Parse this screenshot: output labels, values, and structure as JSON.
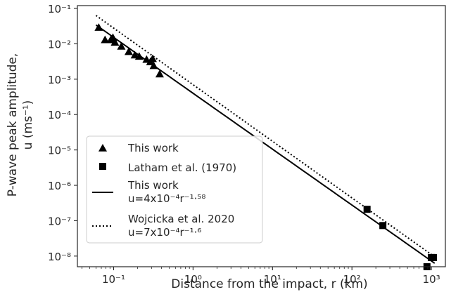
{
  "chart_data": {
    "type": "scatter",
    "title": "",
    "xlabel": "Distance from the impact, r (km)",
    "ylabel": [
      "P-wave peak amplitude,",
      "u (ms⁻¹)"
    ],
    "xscale": "log",
    "yscale": "log",
    "xlim": [
      0.035,
      1500
    ],
    "ylim": [
      5e-09,
      0.12
    ],
    "grid": false,
    "x_ticks": [
      {
        "value": 0.1,
        "label": "10⁻¹"
      },
      {
        "value": 1,
        "label": "10⁰"
      },
      {
        "value": 10,
        "label": "10¹"
      },
      {
        "value": 100,
        "label": "10²"
      },
      {
        "value": 1000,
        "label": "10³"
      }
    ],
    "y_ticks": [
      {
        "value": 1e-08,
        "label": "10⁻⁸"
      },
      {
        "value": 1e-07,
        "label": "10⁻⁷"
      },
      {
        "value": 1e-06,
        "label": "10⁻⁶"
      },
      {
        "value": 1e-05,
        "label": "10⁻⁵"
      },
      {
        "value": 0.0001,
        "label": "10⁻⁴"
      },
      {
        "value": 0.001,
        "label": "10⁻³"
      },
      {
        "value": 0.01,
        "label": "10⁻²"
      },
      {
        "value": 0.1,
        "label": "10⁻¹"
      }
    ],
    "legend_position": "bottom-left",
    "series": [
      {
        "name": "This work",
        "kind": "scatter",
        "marker": "triangle",
        "color": "#000000",
        "points": [
          [
            0.065,
            0.029
          ],
          [
            0.078,
            0.013
          ],
          [
            0.092,
            0.013
          ],
          [
            0.098,
            0.015
          ],
          [
            0.104,
            0.011
          ],
          [
            0.125,
            0.0085
          ],
          [
            0.155,
            0.006
          ],
          [
            0.185,
            0.0048
          ],
          [
            0.21,
            0.0044
          ],
          [
            0.26,
            0.0036
          ],
          [
            0.29,
            0.0031
          ],
          [
            0.31,
            0.0038
          ],
          [
            0.32,
            0.0024
          ],
          [
            0.38,
            0.0014
          ]
        ]
      },
      {
        "name": "Latham et al. (1970)",
        "kind": "scatter",
        "marker": "square",
        "color": "#000000",
        "points": [
          [
            155,
            2.1e-07
          ],
          [
            245,
            7.3e-08
          ],
          [
            880,
            5e-09
          ],
          [
            1000,
            9.1e-09
          ],
          [
            1060,
            9.1e-09
          ]
        ]
      },
      {
        "name": "This work",
        "equation_label": "u=4x10⁻⁴r⁻¹·⁵⁸",
        "kind": "line",
        "style": "solid",
        "color": "#000000",
        "coef": 0.0004,
        "exponent": -1.58,
        "x_range": [
          0.06,
          1100
        ]
      },
      {
        "name": "Wojcicka et al. 2020",
        "equation_label": "u=7x10⁻⁴r⁻¹·⁶",
        "kind": "line",
        "style": "dotted",
        "color": "#000000",
        "coef": 0.0007,
        "exponent": -1.6,
        "x_range": [
          0.06,
          1100
        ]
      }
    ]
  }
}
